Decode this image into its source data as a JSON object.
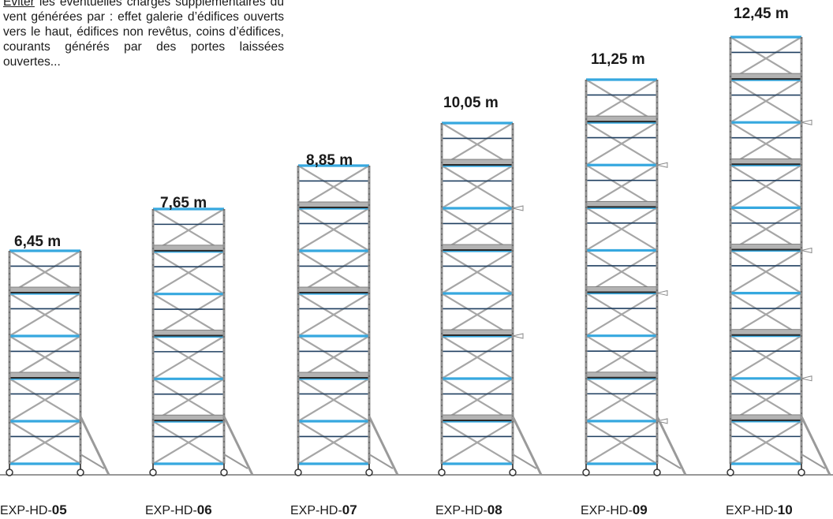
{
  "note": {
    "lead": "Éviter",
    "text": " les éventuelles charges supplémentaires du vent générées par : effet galerie d’édifices ouverts vers le haut, édifices non revêtus, coins d’édifices, courants générés par des portes laissées ouvertes..."
  },
  "colors": {
    "upright": "#8f8f8f",
    "brace": "#a6a6a6",
    "ledger_blue": "#36a8df",
    "ledger_navy": "#1f3f60",
    "platform": "#b3b3b3",
    "ground": "#777777"
  },
  "towers": [
    {
      "model_prefix": "EXP-HD-",
      "model_number": "05",
      "height": "6,45 m"
    },
    {
      "model_prefix": "EXP-HD-",
      "model_number": "06",
      "height": "7,65 m"
    },
    {
      "model_prefix": "EXP-HD-",
      "model_number": "07",
      "height": "8,85 m"
    },
    {
      "model_prefix": "EXP-HD-",
      "model_number": "08",
      "height": "10,05 m"
    },
    {
      "model_prefix": "EXP-HD-",
      "model_number": "09",
      "height": "11,25 m"
    },
    {
      "model_prefix": "EXP-HD-",
      "model_number": "10",
      "height": "12,45 m"
    }
  ],
  "icons": {
    "wheel": "caster-wheel-icon",
    "anchor": "wall-anchor-icon",
    "outrigger": "stabiliser-icon"
  }
}
